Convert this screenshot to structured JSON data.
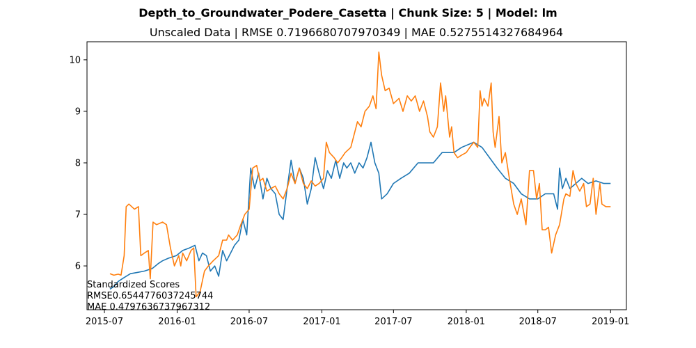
{
  "chart_data": {
    "type": "line",
    "suptitle": "Depth_to_Groundwater_Podere_Casetta | Chunk Size: 5 | Model: lm",
    "title": "Unscaled Data | RMSE 0.7196680707970349 | MAE 0.5275514327684964",
    "xlabel": "",
    "ylabel": "",
    "xlim": [
      "2015-05-18",
      "2019-02-10"
    ],
    "ylim": [
      5.15,
      10.35
    ],
    "x_ticks": [
      "2015-07",
      "2016-01",
      "2016-07",
      "2017-01",
      "2017-07",
      "2018-01",
      "2018-07",
      "2019-01"
    ],
    "y_ticks": [
      6,
      7,
      8,
      9,
      10
    ],
    "grid": false,
    "legend": "none",
    "annotation": [
      "Standardized Scores",
      "RMSE0.6544776037245744",
      "MAE 0.4797636737967312"
    ],
    "series": [
      {
        "color": "#1f77b4",
        "points": [
          [
            "2015-07-15",
            5.55
          ],
          [
            "2015-07-25",
            5.6
          ],
          [
            "2015-08-05",
            5.7
          ],
          [
            "2015-08-15",
            5.75
          ],
          [
            "2015-08-25",
            5.8
          ],
          [
            "2015-09-05",
            5.85
          ],
          [
            "2015-09-20",
            5.87
          ],
          [
            "2015-10-10",
            5.9
          ],
          [
            "2015-10-30",
            5.95
          ],
          [
            "2015-11-15",
            6.05
          ],
          [
            "2015-11-25",
            6.1
          ],
          [
            "2015-12-10",
            6.15
          ],
          [
            "2015-12-30",
            6.2
          ],
          [
            "2016-01-15",
            6.3
          ],
          [
            "2016-02-01",
            6.35
          ],
          [
            "2016-02-15",
            6.4
          ],
          [
            "2016-02-25",
            6.1
          ],
          [
            "2016-03-05",
            6.25
          ],
          [
            "2016-03-15",
            6.2
          ],
          [
            "2016-03-25",
            5.9
          ],
          [
            "2016-04-05",
            6.0
          ],
          [
            "2016-04-15",
            5.8
          ],
          [
            "2016-04-25",
            6.3
          ],
          [
            "2016-05-05",
            6.1
          ],
          [
            "2016-05-15",
            6.25
          ],
          [
            "2016-05-25",
            6.4
          ],
          [
            "2016-06-05",
            6.5
          ],
          [
            "2016-06-15",
            6.9
          ],
          [
            "2016-06-25",
            6.6
          ],
          [
            "2016-07-05",
            7.9
          ],
          [
            "2016-07-15",
            7.5
          ],
          [
            "2016-07-25",
            7.8
          ],
          [
            "2016-08-05",
            7.3
          ],
          [
            "2016-08-15",
            7.7
          ],
          [
            "2016-08-25",
            7.5
          ],
          [
            "2016-09-05",
            7.4
          ],
          [
            "2016-09-15",
            7.0
          ],
          [
            "2016-09-25",
            6.9
          ],
          [
            "2016-10-05",
            7.5
          ],
          [
            "2016-10-15",
            8.05
          ],
          [
            "2016-10-25",
            7.6
          ],
          [
            "2016-11-05",
            7.9
          ],
          [
            "2016-11-15",
            7.7
          ],
          [
            "2016-11-25",
            7.2
          ],
          [
            "2016-12-05",
            7.5
          ],
          [
            "2016-12-15",
            8.1
          ],
          [
            "2016-12-25",
            7.8
          ],
          [
            "2017-01-05",
            7.5
          ],
          [
            "2017-01-15",
            7.85
          ],
          [
            "2017-01-25",
            7.7
          ],
          [
            "2017-02-05",
            8.05
          ],
          [
            "2017-02-15",
            7.7
          ],
          [
            "2017-02-25",
            8.0
          ],
          [
            "2017-03-05",
            7.9
          ],
          [
            "2017-03-15",
            8.0
          ],
          [
            "2017-03-25",
            7.8
          ],
          [
            "2017-04-05",
            8.0
          ],
          [
            "2017-04-15",
            7.9
          ],
          [
            "2017-04-25",
            8.1
          ],
          [
            "2017-05-05",
            8.4
          ],
          [
            "2017-05-15",
            8.0
          ],
          [
            "2017-05-25",
            7.8
          ],
          [
            "2017-06-01",
            7.3
          ],
          [
            "2017-06-15",
            7.4
          ],
          [
            "2017-07-01",
            7.6
          ],
          [
            "2017-07-20",
            7.7
          ],
          [
            "2017-08-10",
            7.8
          ],
          [
            "2017-09-01",
            8.0
          ],
          [
            "2017-10-10",
            8.0
          ],
          [
            "2017-11-01",
            8.2
          ],
          [
            "2017-12-01",
            8.2
          ],
          [
            "2017-12-20",
            8.3
          ],
          [
            "2018-01-20",
            8.4
          ],
          [
            "2018-02-10",
            8.3
          ],
          [
            "2018-03-01",
            8.1
          ],
          [
            "2018-03-20",
            7.9
          ],
          [
            "2018-04-10",
            7.7
          ],
          [
            "2018-05-01",
            7.6
          ],
          [
            "2018-05-20",
            7.4
          ],
          [
            "2018-06-10",
            7.3
          ],
          [
            "2018-07-01",
            7.3
          ],
          [
            "2018-07-20",
            7.4
          ],
          [
            "2018-08-10",
            7.4
          ],
          [
            "2018-08-20",
            7.1
          ],
          [
            "2018-08-25",
            7.9
          ],
          [
            "2018-09-01",
            7.5
          ],
          [
            "2018-09-10",
            7.7
          ],
          [
            "2018-09-20",
            7.5
          ],
          [
            "2018-10-05",
            7.6
          ],
          [
            "2018-10-20",
            7.7
          ],
          [
            "2018-11-05",
            7.6
          ],
          [
            "2018-11-25",
            7.65
          ],
          [
            "2018-12-15",
            7.6
          ],
          [
            "2019-01-01",
            7.6
          ]
        ]
      },
      {
        "color": "#ff7f0e",
        "points": [
          [
            "2015-07-15",
            5.85
          ],
          [
            "2015-07-25",
            5.82
          ],
          [
            "2015-08-05",
            5.84
          ],
          [
            "2015-08-12",
            5.82
          ],
          [
            "2015-08-20",
            6.2
          ],
          [
            "2015-08-25",
            7.15
          ],
          [
            "2015-09-01",
            7.2
          ],
          [
            "2015-09-15",
            7.1
          ],
          [
            "2015-09-25",
            7.15
          ],
          [
            "2015-10-01",
            6.2
          ],
          [
            "2015-10-10",
            6.25
          ],
          [
            "2015-10-20",
            6.3
          ],
          [
            "2015-10-25",
            5.75
          ],
          [
            "2015-11-01",
            6.85
          ],
          [
            "2015-11-10",
            6.8
          ],
          [
            "2015-11-25",
            6.85
          ],
          [
            "2015-12-05",
            6.8
          ],
          [
            "2015-12-15",
            6.35
          ],
          [
            "2015-12-25",
            6.0
          ],
          [
            "2016-01-05",
            6.2
          ],
          [
            "2016-01-10",
            6.0
          ],
          [
            "2016-01-15",
            6.25
          ],
          [
            "2016-01-25",
            6.1
          ],
          [
            "2016-02-05",
            6.3
          ],
          [
            "2016-02-12",
            6.35
          ],
          [
            "2016-02-18",
            5.4
          ],
          [
            "2016-02-28",
            5.5
          ],
          [
            "2016-03-10",
            5.9
          ],
          [
            "2016-03-20",
            6.0
          ],
          [
            "2016-04-01",
            6.1
          ],
          [
            "2016-04-15",
            6.2
          ],
          [
            "2016-04-25",
            6.5
          ],
          [
            "2016-05-05",
            6.5
          ],
          [
            "2016-05-10",
            6.6
          ],
          [
            "2016-05-20",
            6.5
          ],
          [
            "2016-06-01",
            6.6
          ],
          [
            "2016-06-10",
            6.8
          ],
          [
            "2016-06-20",
            7.0
          ],
          [
            "2016-07-01",
            7.1
          ],
          [
            "2016-07-10",
            7.9
          ],
          [
            "2016-07-20",
            7.95
          ],
          [
            "2016-07-28",
            7.65
          ],
          [
            "2016-08-05",
            7.7
          ],
          [
            "2016-08-15",
            7.45
          ],
          [
            "2016-08-25",
            7.5
          ],
          [
            "2016-09-05",
            7.55
          ],
          [
            "2016-09-15",
            7.4
          ],
          [
            "2016-09-25",
            7.3
          ],
          [
            "2016-10-05",
            7.5
          ],
          [
            "2016-10-15",
            7.8
          ],
          [
            "2016-10-25",
            7.6
          ],
          [
            "2016-11-05",
            7.9
          ],
          [
            "2016-11-15",
            7.6
          ],
          [
            "2016-11-25",
            7.5
          ],
          [
            "2016-12-05",
            7.65
          ],
          [
            "2016-12-15",
            7.55
          ],
          [
            "2016-12-25",
            7.6
          ],
          [
            "2017-01-05",
            7.7
          ],
          [
            "2017-01-12",
            8.4
          ],
          [
            "2017-01-20",
            8.2
          ],
          [
            "2017-02-01",
            8.1
          ],
          [
            "2017-02-10",
            8.0
          ],
          [
            "2017-02-20",
            8.1
          ],
          [
            "2017-03-01",
            8.2
          ],
          [
            "2017-03-15",
            8.3
          ],
          [
            "2017-04-01",
            8.8
          ],
          [
            "2017-04-10",
            8.7
          ],
          [
            "2017-04-20",
            9.0
          ],
          [
            "2017-05-01",
            9.1
          ],
          [
            "2017-05-10",
            9.3
          ],
          [
            "2017-05-18",
            9.05
          ],
          [
            "2017-05-25",
            10.15
          ],
          [
            "2017-06-01",
            9.7
          ],
          [
            "2017-06-10",
            9.4
          ],
          [
            "2017-06-20",
            9.45
          ],
          [
            "2017-07-01",
            9.15
          ],
          [
            "2017-07-15",
            9.25
          ],
          [
            "2017-07-25",
            9.0
          ],
          [
            "2017-08-05",
            9.3
          ],
          [
            "2017-08-15",
            9.2
          ],
          [
            "2017-08-25",
            9.3
          ],
          [
            "2017-09-05",
            9.0
          ],
          [
            "2017-09-15",
            9.2
          ],
          [
            "2017-09-25",
            8.9
          ],
          [
            "2017-10-01",
            8.6
          ],
          [
            "2017-10-10",
            8.5
          ],
          [
            "2017-10-20",
            8.7
          ],
          [
            "2017-10-28",
            9.55
          ],
          [
            "2017-11-05",
            9.0
          ],
          [
            "2017-11-10",
            9.3
          ],
          [
            "2017-11-20",
            8.5
          ],
          [
            "2017-11-25",
            8.7
          ],
          [
            "2017-12-01",
            8.2
          ],
          [
            "2017-12-10",
            8.1
          ],
          [
            "2017-12-20",
            8.15
          ],
          [
            "2018-01-01",
            8.2
          ],
          [
            "2018-01-10",
            8.3
          ],
          [
            "2018-01-20",
            8.4
          ],
          [
            "2018-01-30",
            8.3
          ],
          [
            "2018-02-05",
            9.4
          ],
          [
            "2018-02-10",
            9.1
          ],
          [
            "2018-02-15",
            9.25
          ],
          [
            "2018-02-25",
            9.1
          ],
          [
            "2018-03-05",
            9.55
          ],
          [
            "2018-03-10",
            8.6
          ],
          [
            "2018-03-15",
            8.3
          ],
          [
            "2018-03-25",
            8.9
          ],
          [
            "2018-04-01",
            8.0
          ],
          [
            "2018-04-10",
            8.2
          ],
          [
            "2018-04-20",
            7.7
          ],
          [
            "2018-05-01",
            7.2
          ],
          [
            "2018-05-10",
            7.0
          ],
          [
            "2018-05-20",
            7.3
          ],
          [
            "2018-06-01",
            6.8
          ],
          [
            "2018-06-10",
            7.85
          ],
          [
            "2018-06-20",
            7.85
          ],
          [
            "2018-06-28",
            7.3
          ],
          [
            "2018-07-05",
            7.6
          ],
          [
            "2018-07-12",
            6.7
          ],
          [
            "2018-07-20",
            6.7
          ],
          [
            "2018-07-28",
            6.75
          ],
          [
            "2018-08-05",
            6.25
          ],
          [
            "2018-08-15",
            6.6
          ],
          [
            "2018-08-25",
            6.8
          ],
          [
            "2018-09-05",
            7.3
          ],
          [
            "2018-09-10",
            7.4
          ],
          [
            "2018-09-20",
            7.35
          ],
          [
            "2018-09-28",
            7.85
          ],
          [
            "2018-10-05",
            7.6
          ],
          [
            "2018-10-15",
            7.45
          ],
          [
            "2018-10-25",
            7.6
          ],
          [
            "2018-11-01",
            7.15
          ],
          [
            "2018-11-10",
            7.2
          ],
          [
            "2018-11-18",
            7.7
          ],
          [
            "2018-11-25",
            7.0
          ],
          [
            "2018-12-05",
            7.6
          ],
          [
            "2018-12-10",
            7.2
          ],
          [
            "2018-12-20",
            7.15
          ],
          [
            "2019-01-01",
            7.15
          ]
        ]
      }
    ]
  }
}
